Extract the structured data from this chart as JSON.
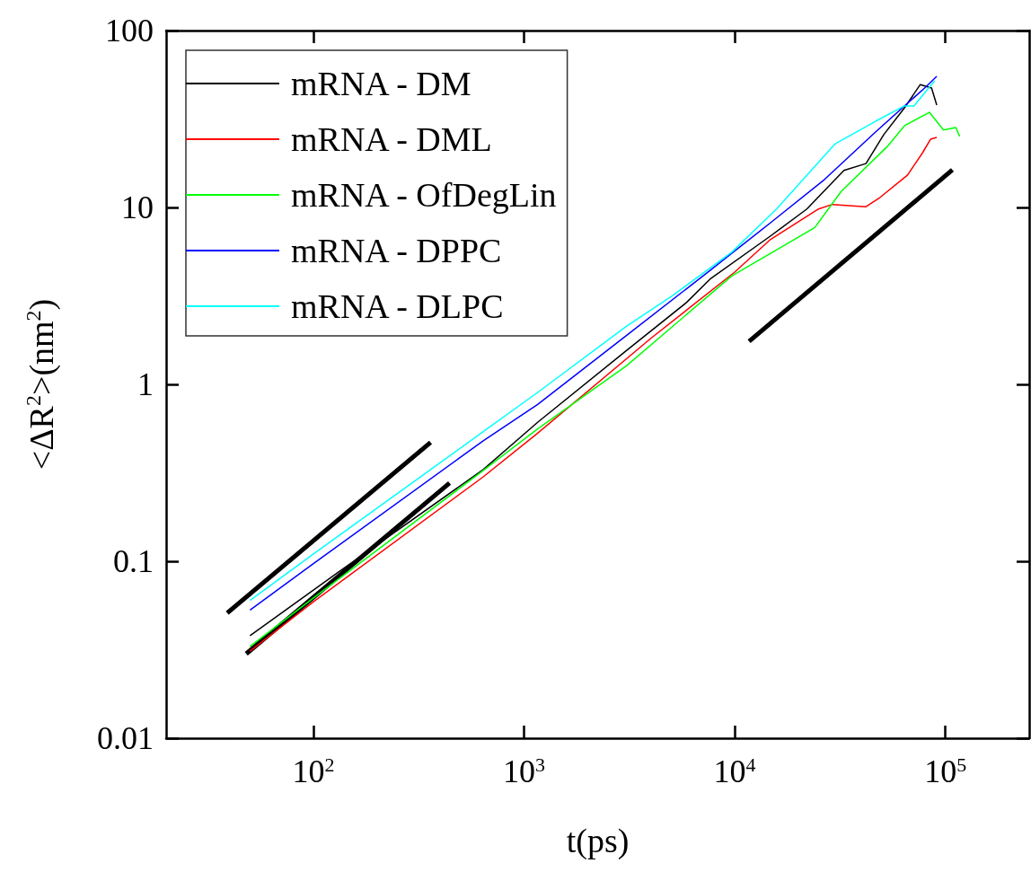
{
  "chart_data": {
    "type": "line",
    "xlabel": "t(ps)",
    "ylabel": "<ΔR$^{2}$>(nm$^{2}$)",
    "log": "xy",
    "xlim": [
      20,
      250000
    ],
    "ylim": [
      0.01,
      100
    ],
    "xticks": [
      {
        "value": 100,
        "label": "10$^{2}$"
      },
      {
        "value": 1000,
        "label": "10$^{3}$"
      },
      {
        "value": 10000,
        "label": "10$^{4}$"
      },
      {
        "value": 100000,
        "label": "10$^{5}$"
      }
    ],
    "yticks": [
      0.01,
      0.1,
      1,
      10,
      100
    ],
    "grid": false,
    "legend": "top left",
    "marker": "none",
    "line_style": "solid",
    "series": [
      {
        "name": "mRNA - DM",
        "color": "#000000",
        "x": [
          50,
          130,
          640,
          1160,
          3080,
          5900,
          7700,
          14800,
          22000,
          33000,
          42000,
          51000,
          64000,
          76000,
          86000,
          91000
        ],
        "values": [
          0.038,
          0.086,
          0.33,
          0.61,
          1.56,
          2.9,
          3.97,
          6.9,
          9.8,
          16.2,
          17.7,
          25.8,
          36.6,
          49.5,
          47.3,
          37.9
        ]
      },
      {
        "name": "mRNA - DML",
        "color": "#ff0000",
        "x": [
          50,
          100,
          640,
          1160,
          4000,
          10000,
          14800,
          25000,
          29000,
          42000,
          49000,
          66000,
          78000,
          85000,
          91000
        ],
        "values": [
          0.031,
          0.059,
          0.3,
          0.53,
          1.82,
          4.31,
          6.6,
          9.8,
          10.4,
          10.1,
          11.4,
          15.2,
          20.4,
          24.3,
          24.9
        ]
      },
      {
        "name": "mRNA - OfDegLin",
        "color": "#00ff00",
        "x": [
          50,
          100,
          640,
          1160,
          3080,
          9700,
          14800,
          24000,
          32000,
          53000,
          64000,
          84000,
          98000,
          112000,
          117000
        ],
        "values": [
          0.033,
          0.062,
          0.326,
          0.56,
          1.28,
          4.11,
          5.5,
          7.7,
          12.3,
          22.1,
          29.0,
          34.5,
          27.4,
          28.3,
          25.2
        ]
      },
      {
        "name": "mRNA - DPPC",
        "color": "#0000ff",
        "x": [
          50,
          100,
          640,
          1160,
          3080,
          7450,
          14800,
          26700,
          46600,
          80600,
          91000
        ],
        "values": [
          0.053,
          0.097,
          0.48,
          0.77,
          1.9,
          4.3,
          8.2,
          14.4,
          26.7,
          47.9,
          55.1
        ]
      },
      {
        "name": "mRNA - DLPC",
        "color": "#00ffff",
        "x": [
          50,
          100,
          640,
          1160,
          3080,
          5000,
          9700,
          15800,
          30000,
          46600,
          64000,
          71000,
          80600,
          89000
        ],
        "values": [
          0.06,
          0.11,
          0.54,
          0.9,
          2.14,
          3.14,
          5.6,
          9.8,
          22.9,
          30.7,
          37.5,
          37.5,
          45.2,
          52.0
        ]
      },
      {
        "color": "#000000",
        "x": [
          39,
          360
        ],
        "values": [
          0.051,
          0.47
        ]
      },
      {
        "color": "#000000",
        "x": [
          48,
          443
        ],
        "values": [
          0.03,
          0.277
        ]
      },
      {
        "color": "#000000",
        "x": [
          11700,
          108000
        ],
        "values": [
          1.75,
          16.3
        ]
      }
    ]
  }
}
